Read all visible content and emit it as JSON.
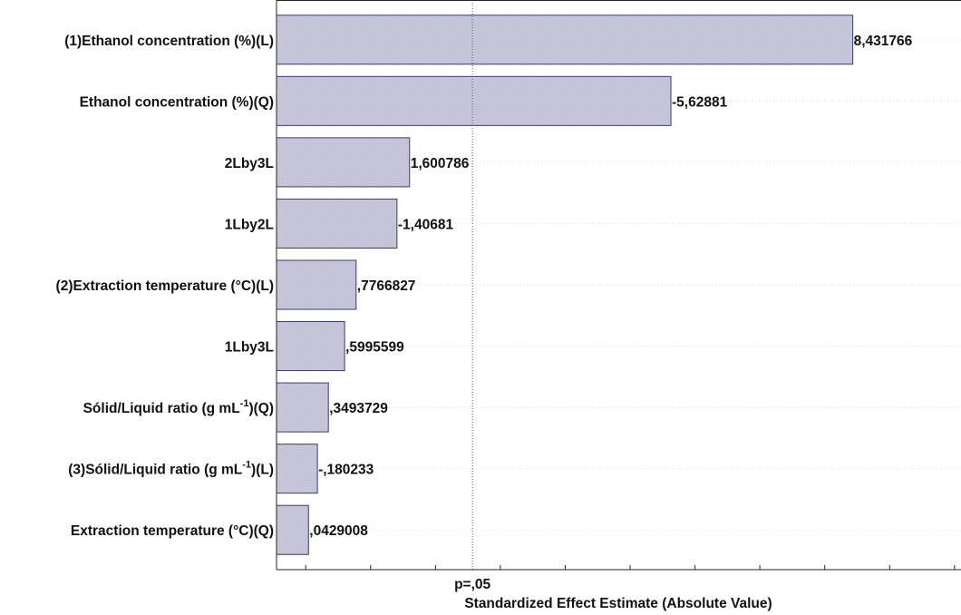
{
  "chart_data": {
    "type": "bar",
    "orientation": "horizontal",
    "categories": [
      "(1)Ethanol concentration (%)(L)",
      "Ethanol concentration (%)(Q)",
      "2Lby3L",
      "1Lby2L",
      "(2)Extraction temperature (°C)(L)",
      "1Lby3L",
      "Sólid/Liquid ratio (g mL⁻¹)(Q)",
      "(3)Sólid/Liquid ratio (g mL⁻¹)(L)",
      "Extraction temperature (°C)(Q)"
    ],
    "values": [
      8.431766,
      5.62881,
      1.600786,
      1.40681,
      0.7766827,
      0.5995599,
      0.3493729,
      0.180233,
      0.0429008
    ],
    "value_labels": [
      "8,431766",
      "-5,62881",
      "1,600786",
      "-1,40681",
      ",7766827",
      ",5995599",
      ",3493729",
      "-,180233",
      ",0429008"
    ],
    "xlabel": "Standardized Effect Estimate (Absolute Value)",
    "reference_line": {
      "value": 2.57,
      "label": "p=,05"
    },
    "xlim": [
      -0.45,
      10.1
    ],
    "grid": true,
    "bar_color": "#c9cadc",
    "bar_edge_color": "#3a3a78"
  }
}
